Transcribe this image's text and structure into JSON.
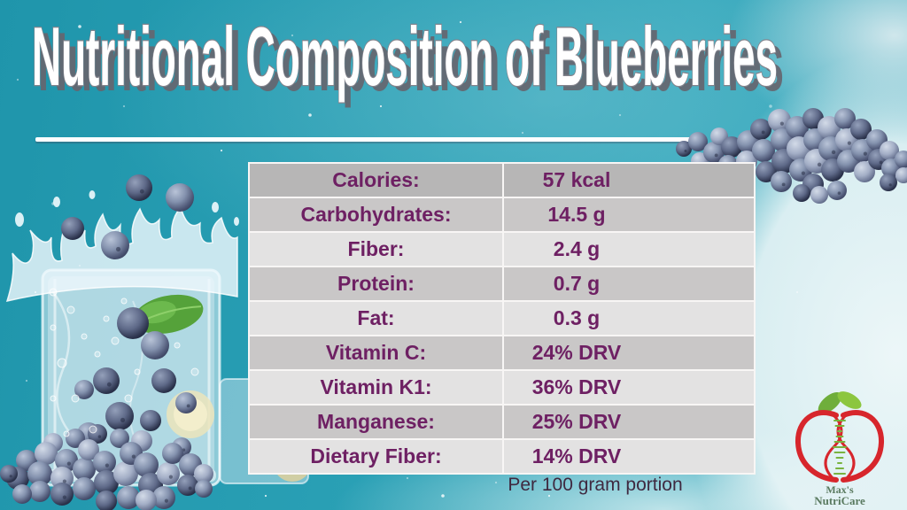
{
  "slide": {
    "title": "Nutritional Composition of Blueberries",
    "footnote": "Per 100 gram portion"
  },
  "table": {
    "rows": [
      {
        "label": "Calories:",
        "value": "57 kcal"
      },
      {
        "label": "Carbohydrates:",
        "value": "14.5 g"
      },
      {
        "label": "Fiber:",
        "value": "2.4 g"
      },
      {
        "label": "Protein:",
        "value": "0.7 g"
      },
      {
        "label": "Fat:",
        "value": "0.3 g"
      },
      {
        "label": "Vitamin C:",
        "value": "24% DRV"
      },
      {
        "label": "Vitamin K1:",
        "value": "36% DRV"
      },
      {
        "label": "Manganese:",
        "value": "25% DRV"
      },
      {
        "label": "Dietary Fiber:",
        "value": "14% DRV"
      }
    ]
  },
  "logo": {
    "name_line1": "Max's",
    "name_line2": "NutriCare"
  },
  "images": {
    "left": "blueberries-splashing-into-water-glass",
    "top_right": "blueberry-cluster",
    "bottom_left": "blueberry-pile"
  },
  "colors": {
    "background_teal": "#2aa0b5",
    "background_pale": "#eef7f8",
    "table_text_purple": "#6e2063",
    "row_header_gray": "#b7b6b6",
    "row_gray": "#c9c7c7",
    "row_light": "#e3e2e2",
    "title_fill": "#ffffff",
    "title_outline": "#84848d",
    "footnote_text": "#3f2940",
    "logo_red": "#d7262c",
    "logo_leaf_green": "#79b33f",
    "logo_text_green": "#5a7a60"
  }
}
